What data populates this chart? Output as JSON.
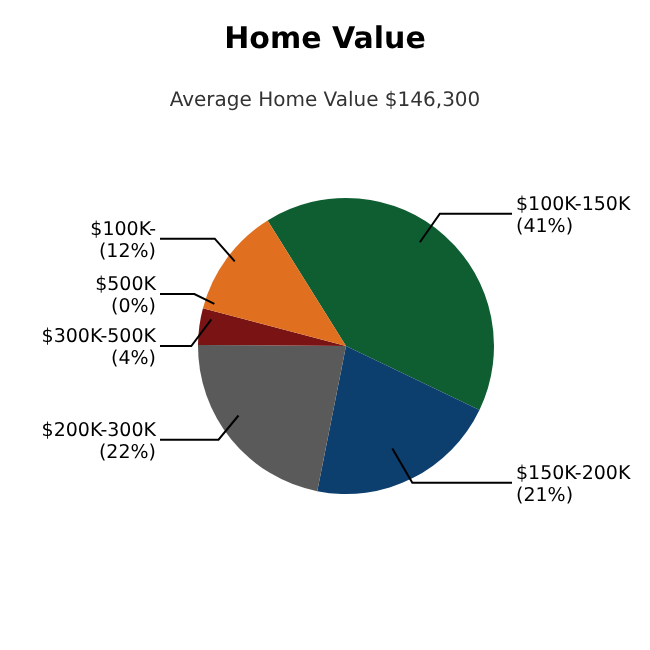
{
  "chart_data": {
    "type": "pie",
    "title": "Home Value",
    "subtitle": "Average Home Value  $146,300",
    "categories": [
      "$100K-150K",
      "$150K-200K",
      "$200K-300K",
      "$300K-500K",
      "$500K",
      "$100K-"
    ],
    "values": [
      41,
      21,
      22,
      4,
      0,
      12
    ],
    "value_labels": [
      "(41%)",
      "(21%)",
      "(22%)",
      "(4%)",
      "(0%)",
      "(12%)"
    ],
    "colors": [
      "#0e5e32",
      "#0d3f6e",
      "#5a5a5a",
      "#7a1414",
      "#9a2020",
      "#e07020"
    ]
  }
}
